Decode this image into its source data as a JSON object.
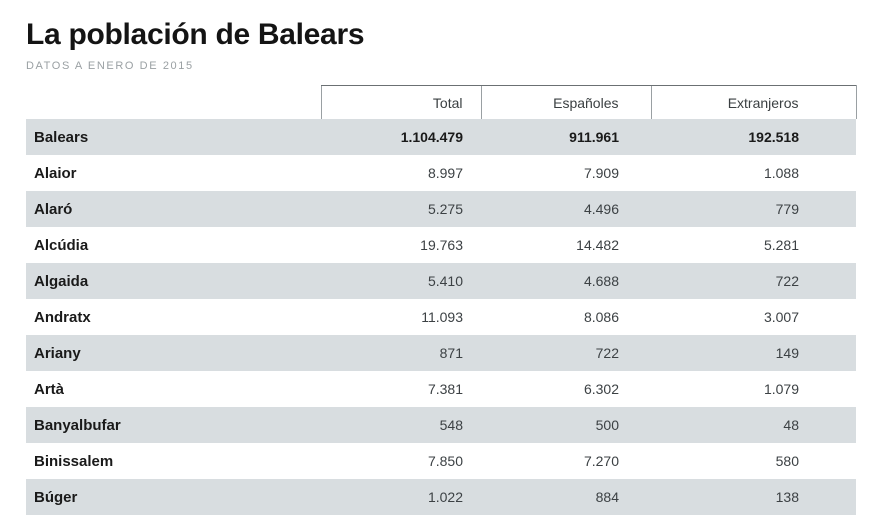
{
  "header": {
    "title": "La población de Balears",
    "subtitle": "DATOS A ENERO DE 2015"
  },
  "chart_data": {
    "type": "table",
    "title": "La población de Balears",
    "subtitle": "DATOS A ENERO DE 2015",
    "columns": [
      "Total",
      "Españoles",
      "Extranjeros"
    ],
    "rows": [
      {
        "name": "Balears",
        "values": [
          "1.104.479",
          "911.961",
          "192.518"
        ],
        "emphasis": true
      },
      {
        "name": "Alaior",
        "values": [
          "8.997",
          "7.909",
          "1.088"
        ]
      },
      {
        "name": "Alaró",
        "values": [
          "5.275",
          "4.496",
          "779"
        ]
      },
      {
        "name": "Alcúdia",
        "values": [
          "19.763",
          "14.482",
          "5.281"
        ]
      },
      {
        "name": "Algaida",
        "values": [
          "5.410",
          "4.688",
          "722"
        ]
      },
      {
        "name": "Andratx",
        "values": [
          "11.093",
          "8.086",
          "3.007"
        ]
      },
      {
        "name": "Ariany",
        "values": [
          "871",
          "722",
          "149"
        ]
      },
      {
        "name": "Artà",
        "values": [
          "7.381",
          "6.302",
          "1.079"
        ]
      },
      {
        "name": "Banyalbufar",
        "values": [
          "548",
          "500",
          "48"
        ]
      },
      {
        "name": "Binissalem",
        "values": [
          "7.850",
          "7.270",
          "580"
        ]
      },
      {
        "name": "Búger",
        "values": [
          "1.022",
          "884",
          "138"
        ]
      }
    ],
    "colors": {
      "stripe": "#d8dde0",
      "title": "#141414",
      "subtitle": "#9aa0a3"
    }
  }
}
